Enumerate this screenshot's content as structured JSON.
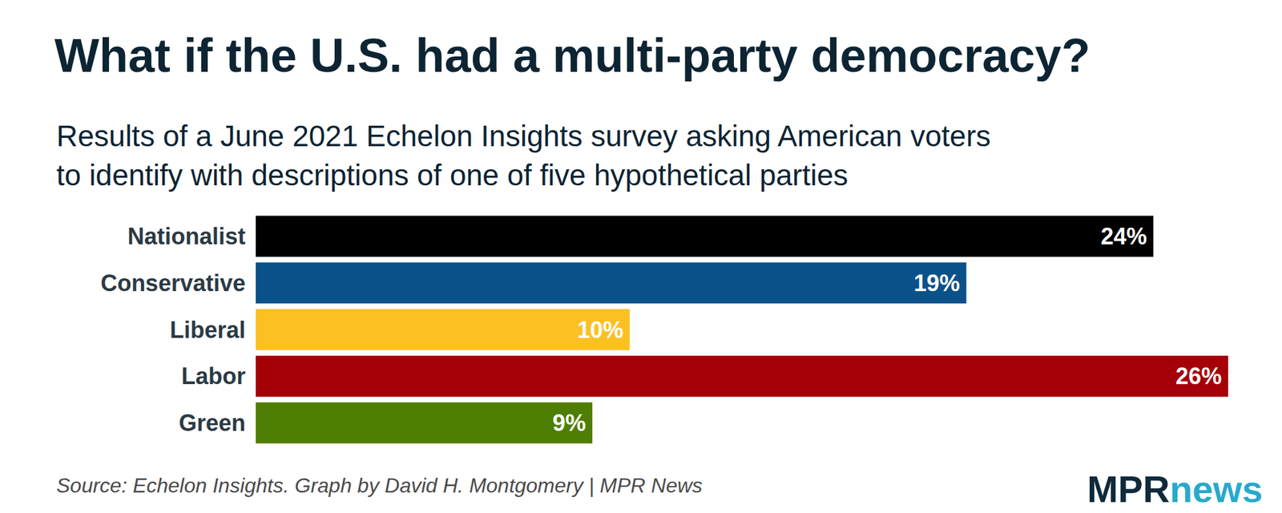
{
  "chart_data": {
    "type": "bar",
    "title": "What if the U.S. had a multi-party democracy?",
    "subtitle": "Results of a June 2021 Echelon Insights survey asking American voters\nto identify with descriptions of one of five hypothetical parties",
    "source": "Source: Echelon Insights. Graph by David H. Montgomery | MPR News",
    "logo": [
      "MPR",
      "news"
    ],
    "orientation": "horizontal",
    "categories": [
      "Nationalist",
      "Conservative",
      "Liberal",
      "Labor",
      "Green"
    ],
    "values": [
      24,
      19,
      10,
      26,
      9
    ],
    "value_labels": [
      "24%",
      "19%",
      "10%",
      "26%",
      "9%"
    ],
    "colors": [
      "#000000",
      "#0b5189",
      "#fbc123",
      "#a50008",
      "#4f7e05"
    ],
    "xlim": [
      0,
      26
    ],
    "xticks": [
      0,
      26
    ],
    "grid": false,
    "tick_labels": false,
    "data_labels": true
  }
}
